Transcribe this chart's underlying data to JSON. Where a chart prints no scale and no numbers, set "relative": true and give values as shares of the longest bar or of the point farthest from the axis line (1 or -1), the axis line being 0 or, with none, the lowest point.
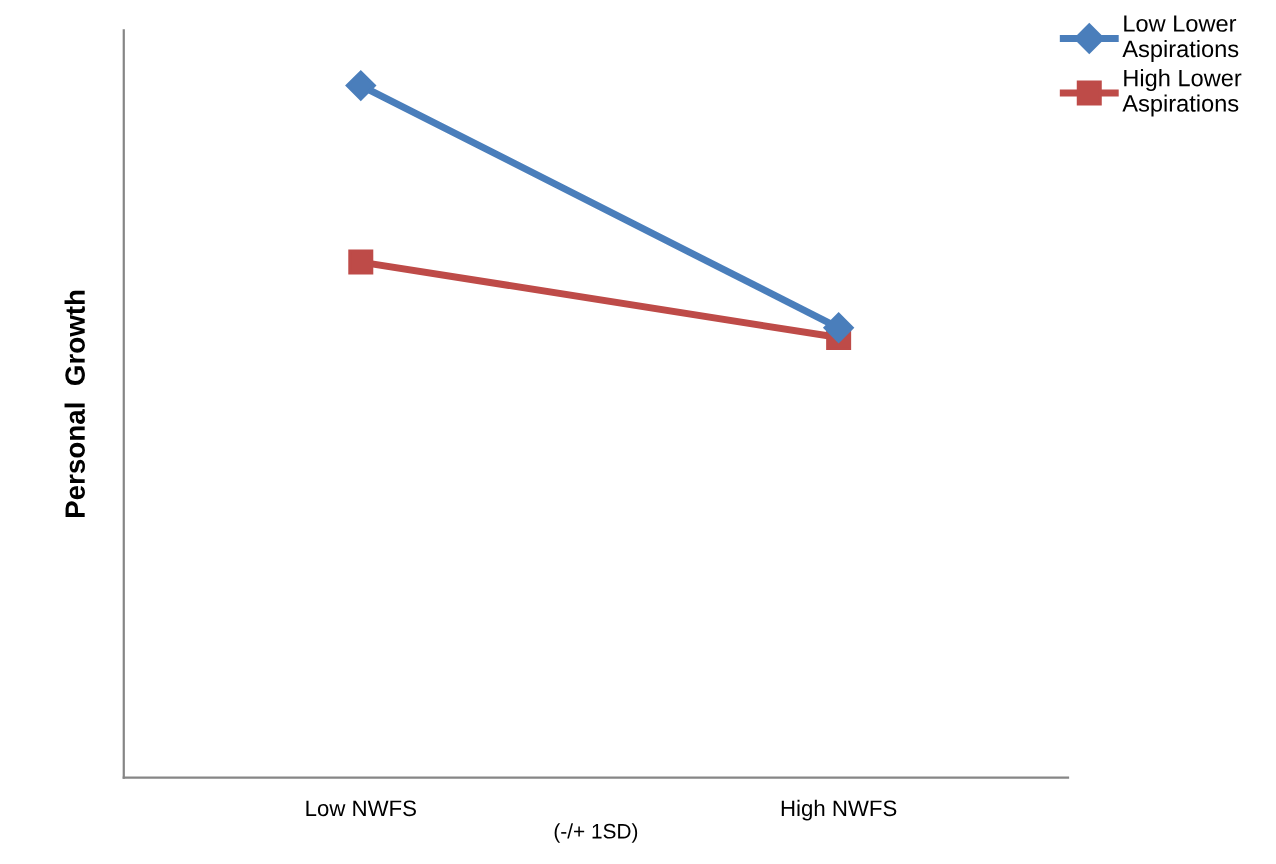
{
  "chart_data": {
    "type": "line",
    "relative": true,
    "ylabel": "Personal  Growth",
    "xlabel": "(-/+ 1SD)",
    "categories": [
      "Low NWFS",
      "High NWFS"
    ],
    "series": [
      {
        "name": "Low Lower Aspirations",
        "color": "#4a7ebb",
        "marker": "diamond",
        "values": [
          1,
          0.65
        ]
      },
      {
        "name": "High Lower Aspirations",
        "color": "#be4b48",
        "marker": "square",
        "values": [
          0.745,
          0.636
        ]
      }
    ],
    "legend": "top right",
    "grid": false,
    "line_style": "solid"
  }
}
